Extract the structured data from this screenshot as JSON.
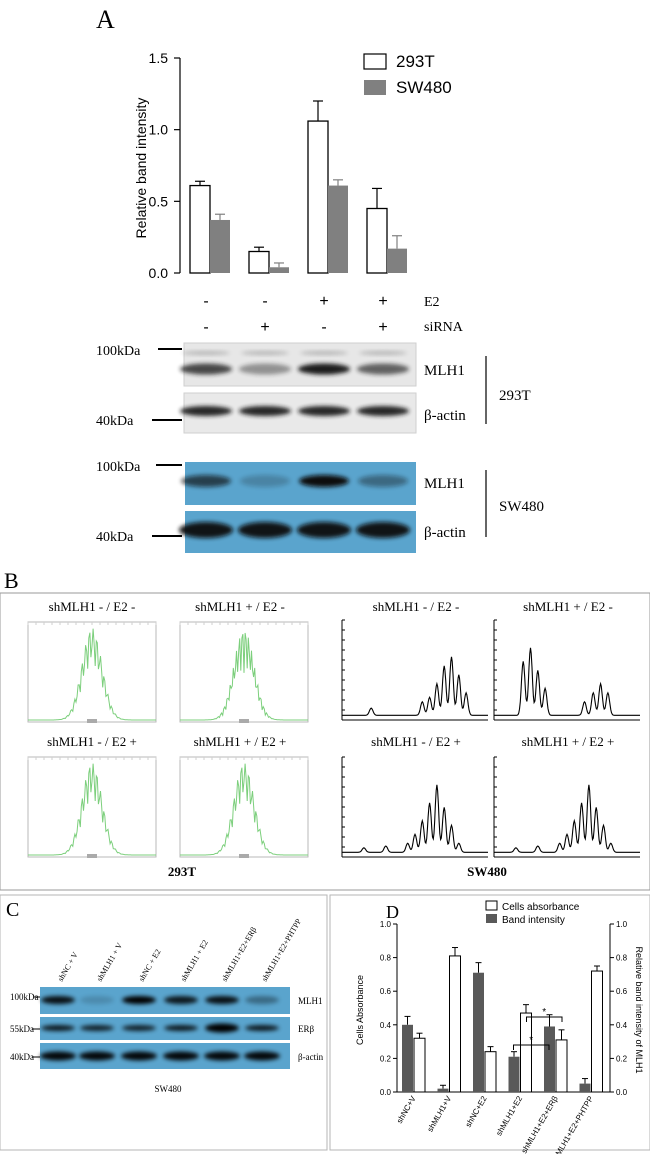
{
  "panel_a": {
    "label": "A",
    "chart": {
      "type": "bar",
      "ylabel": "Relative band intensity",
      "ylim": [
        0,
        1.5
      ],
      "yticks": [
        "0.0",
        "0.5",
        "1.0",
        "1.5"
      ],
      "groups": 4,
      "series": [
        {
          "name": "293T",
          "values": [
            0.61,
            0.15,
            1.06,
            0.45
          ],
          "errors": [
            0.03,
            0.03,
            0.14,
            0.14
          ],
          "color": "#ffffff"
        },
        {
          "name": "SW480",
          "values": [
            0.37,
            0.04,
            0.61,
            0.17
          ],
          "errors": [
            0.04,
            0.03,
            0.04,
            0.09
          ],
          "color": "#808080"
        }
      ]
    },
    "conditions": {
      "e2_label": "E2",
      "sirna_label": "siRNA",
      "e2": [
        "-",
        "-",
        "+",
        "+"
      ],
      "sirna": [
        "-",
        "+",
        "-",
        "+"
      ]
    },
    "blot_293t": {
      "mw_top": "100kDa",
      "mw_bottom": "40kDa",
      "band_top": "MLH1",
      "band_bottom": "β-actin",
      "cell_line": "293T"
    },
    "blot_sw480": {
      "mw_top": "100kDa",
      "mw_bottom": "40kDa",
      "band_top": "MLH1",
      "band_bottom": "β-actin",
      "cell_line": "SW480"
    }
  },
  "panel_b": {
    "label": "B",
    "left_titles": [
      "shMLH1 - / E2 -",
      "shMLH1 + / E2 -",
      "shMLH1 - / E2 +",
      "shMLH1 + / E2 +"
    ],
    "right_titles": [
      "shMLH1 - / E2 -",
      "shMLH1 + / E2 -",
      "shMLH1 - / E2 +",
      "shMLH1 + / E2 +"
    ],
    "left_caption": "293T",
    "right_caption": "SW480"
  },
  "panel_c": {
    "label": "C",
    "lanes": [
      "shNC + V",
      "shMLH1 + V",
      "shNC + E2",
      "shMLH1 + E2",
      "shMLH1+E2+ERβ",
      "shMLH1+E2+PHTPP"
    ],
    "mw": [
      "100kDa",
      "55kDa",
      "40kDa"
    ],
    "bands": [
      "MLH1",
      "ERβ",
      "β-actin"
    ],
    "caption": "SW480"
  },
  "panel_d": {
    "label": "D",
    "chart": {
      "type": "bar",
      "ylabel_left": "Cells Absorbance",
      "ylabel_right": "Relative band intensity of MLH1",
      "ylim": [
        0,
        1.0
      ],
      "yticks": [
        "0.0",
        "0.2",
        "0.4",
        "0.6",
        "0.8",
        "1.0"
      ],
      "categories": [
        "shNC+V",
        "shMLH1+V",
        "shNC+E2",
        "shMLH1+E2",
        "shMLH1+E2+ERβ",
        "shMLH1+E2+PHTPP"
      ],
      "series": [
        {
          "name": "Cells absorbance",
          "values": [
            0.32,
            0.81,
            0.24,
            0.47,
            0.31,
            0.72
          ],
          "errors": [
            0.03,
            0.05,
            0.03,
            0.05,
            0.06,
            0.03
          ],
          "color": "#ffffff"
        },
        {
          "name": "Band intensity",
          "values": [
            0.4,
            0.02,
            0.71,
            0.21,
            0.39,
            0.05
          ],
          "errors": [
            0.05,
            0.02,
            0.06,
            0.03,
            0.07,
            0.03
          ],
          "color": "#595959"
        }
      ],
      "significance": [
        "*",
        "*"
      ]
    }
  }
}
